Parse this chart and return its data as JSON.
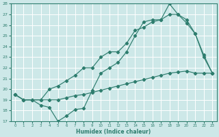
{
  "xlabel": "Humidex (Indice chaleur)",
  "xlim_min": -0.5,
  "xlim_max": 23.5,
  "ylim_min": 17,
  "ylim_max": 28,
  "xticks": [
    0,
    1,
    2,
    3,
    4,
    5,
    6,
    7,
    8,
    9,
    10,
    11,
    12,
    13,
    14,
    15,
    16,
    17,
    18,
    19,
    20,
    21,
    22,
    23
  ],
  "yticks": [
    17,
    18,
    19,
    20,
    21,
    22,
    23,
    24,
    25,
    26,
    27,
    28
  ],
  "line_color": "#2e7d6e",
  "bg_color": "#cde8e8",
  "grid_color": "#b0d4d4",
  "series": [
    {
      "x": [
        0,
        1,
        2,
        3,
        4,
        5,
        6,
        7,
        8,
        9,
        10,
        11,
        12,
        13,
        14,
        15,
        16,
        17,
        18,
        19,
        20,
        21,
        22,
        23
      ],
      "y": [
        19.5,
        19.0,
        19.0,
        19.0,
        19.0,
        19.0,
        19.2,
        19.4,
        19.5,
        19.7,
        19.9,
        20.1,
        20.3,
        20.5,
        20.7,
        20.9,
        21.1,
        21.3,
        21.5,
        21.6,
        21.7,
        21.5,
        21.5,
        21.5
      ]
    },
    {
      "x": [
        0,
        1,
        2,
        3,
        4,
        5,
        6,
        7,
        8,
        9,
        10,
        11,
        12,
        13,
        14,
        15,
        16,
        17,
        18,
        19,
        20,
        21,
        22,
        23
      ],
      "y": [
        19.5,
        19.0,
        19.0,
        18.5,
        18.3,
        17.0,
        17.5,
        18.1,
        18.2,
        19.9,
        21.5,
        22.0,
        22.5,
        23.5,
        25.0,
        26.3,
        26.5,
        26.5,
        28.0,
        27.0,
        26.2,
        25.2,
        23.0,
        21.5
      ]
    },
    {
      "x": [
        0,
        1,
        2,
        3,
        4,
        5,
        6,
        7,
        8,
        9,
        10,
        11,
        12,
        13,
        14,
        15,
        16,
        17,
        18,
        19,
        20,
        21,
        22,
        23
      ],
      "y": [
        19.5,
        19.0,
        19.0,
        19.0,
        20.0,
        20.3,
        20.8,
        21.3,
        22.0,
        22.0,
        23.0,
        23.5,
        23.5,
        24.3,
        25.5,
        25.8,
        26.3,
        26.5,
        27.0,
        27.0,
        26.5,
        25.2,
        23.2,
        21.5
      ]
    }
  ]
}
